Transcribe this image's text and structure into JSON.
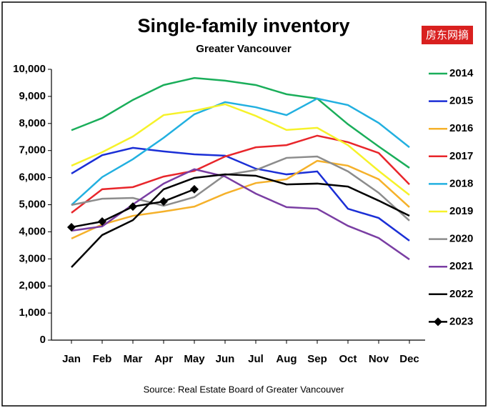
{
  "chart_data": {
    "type": "line",
    "title": "Single-family inventory",
    "subtitle": "Greater Vancouver",
    "source": "Source: Real Estate Board of Greater Vancouver",
    "watermark": "房东网摘",
    "categories": [
      "Jan",
      "Feb",
      "Mar",
      "Apr",
      "May",
      "Jun",
      "Jul",
      "Aug",
      "Sep",
      "Oct",
      "Nov",
      "Dec"
    ],
    "ylim": [
      0,
      10000
    ],
    "yticks": [
      0,
      {
        "value": 1000,
        "label": "1,000"
      },
      {
        "value": 2000,
        "label": "2,000"
      },
      {
        "value": 3000,
        "label": "3,000"
      },
      {
        "value": 4000,
        "label": "4,000"
      },
      {
        "value": 5000,
        "label": "5,000"
      },
      {
        "value": 6000,
        "label": "6,000"
      },
      {
        "value": 7000,
        "label": "7,000"
      },
      {
        "value": 8000,
        "label": "8,000"
      },
      {
        "value": 9000,
        "label": "9,000"
      },
      {
        "value": 10000,
        "label": "10,000"
      }
    ],
    "grid": false,
    "legend": "right",
    "series": [
      {
        "name": "2014",
        "color": "#1aae5a",
        "values": [
          7750,
          8200,
          8870,
          9420,
          9680,
          9580,
          9420,
          9080,
          8920,
          7970,
          7150,
          6360
        ]
      },
      {
        "name": "2015",
        "color": "#1b2fd6",
        "values": [
          6150,
          6830,
          7100,
          6970,
          6860,
          6810,
          6330,
          6120,
          6230,
          4850,
          4510,
          3670
        ]
      },
      {
        "name": "2016",
        "color": "#f5b12a",
        "values": [
          3750,
          4270,
          4590,
          4750,
          4930,
          5410,
          5800,
          5940,
          6620,
          6440,
          5940,
          4910
        ]
      },
      {
        "name": "2017",
        "color": "#e8262b",
        "values": [
          4700,
          5570,
          5650,
          6040,
          6250,
          6780,
          7120,
          7200,
          7550,
          7310,
          6910,
          5750
        ]
      },
      {
        "name": "2018",
        "color": "#22b0e0",
        "values": [
          4990,
          6020,
          6680,
          7470,
          8340,
          8790,
          8600,
          8310,
          8920,
          8680,
          8020,
          7120
        ]
      },
      {
        "name": "2019",
        "color": "#f6f22a",
        "values": [
          6440,
          6940,
          7520,
          8310,
          8470,
          8710,
          8280,
          7760,
          7840,
          7200,
          6250,
          5360
        ]
      },
      {
        "name": "2020",
        "color": "#8c8c8c",
        "values": [
          4990,
          5220,
          5250,
          4960,
          5280,
          6100,
          6280,
          6730,
          6780,
          6230,
          5440,
          4410
        ]
      },
      {
        "name": "2021",
        "color": "#7a3ea3",
        "values": [
          4040,
          4200,
          5010,
          5780,
          6310,
          6040,
          5410,
          4910,
          4850,
          4220,
          3770,
          2980
        ]
      },
      {
        "name": "2022",
        "color": "#000000",
        "values": [
          2690,
          3880,
          4430,
          5570,
          5990,
          6120,
          6070,
          5750,
          5780,
          5670,
          5150,
          4590
        ]
      },
      {
        "name": "2023",
        "color": "#000000",
        "marker": "diamond",
        "values": [
          4170,
          4380,
          4930,
          5120,
          5570,
          null,
          null,
          null,
          null,
          null,
          null,
          null
        ]
      }
    ]
  }
}
